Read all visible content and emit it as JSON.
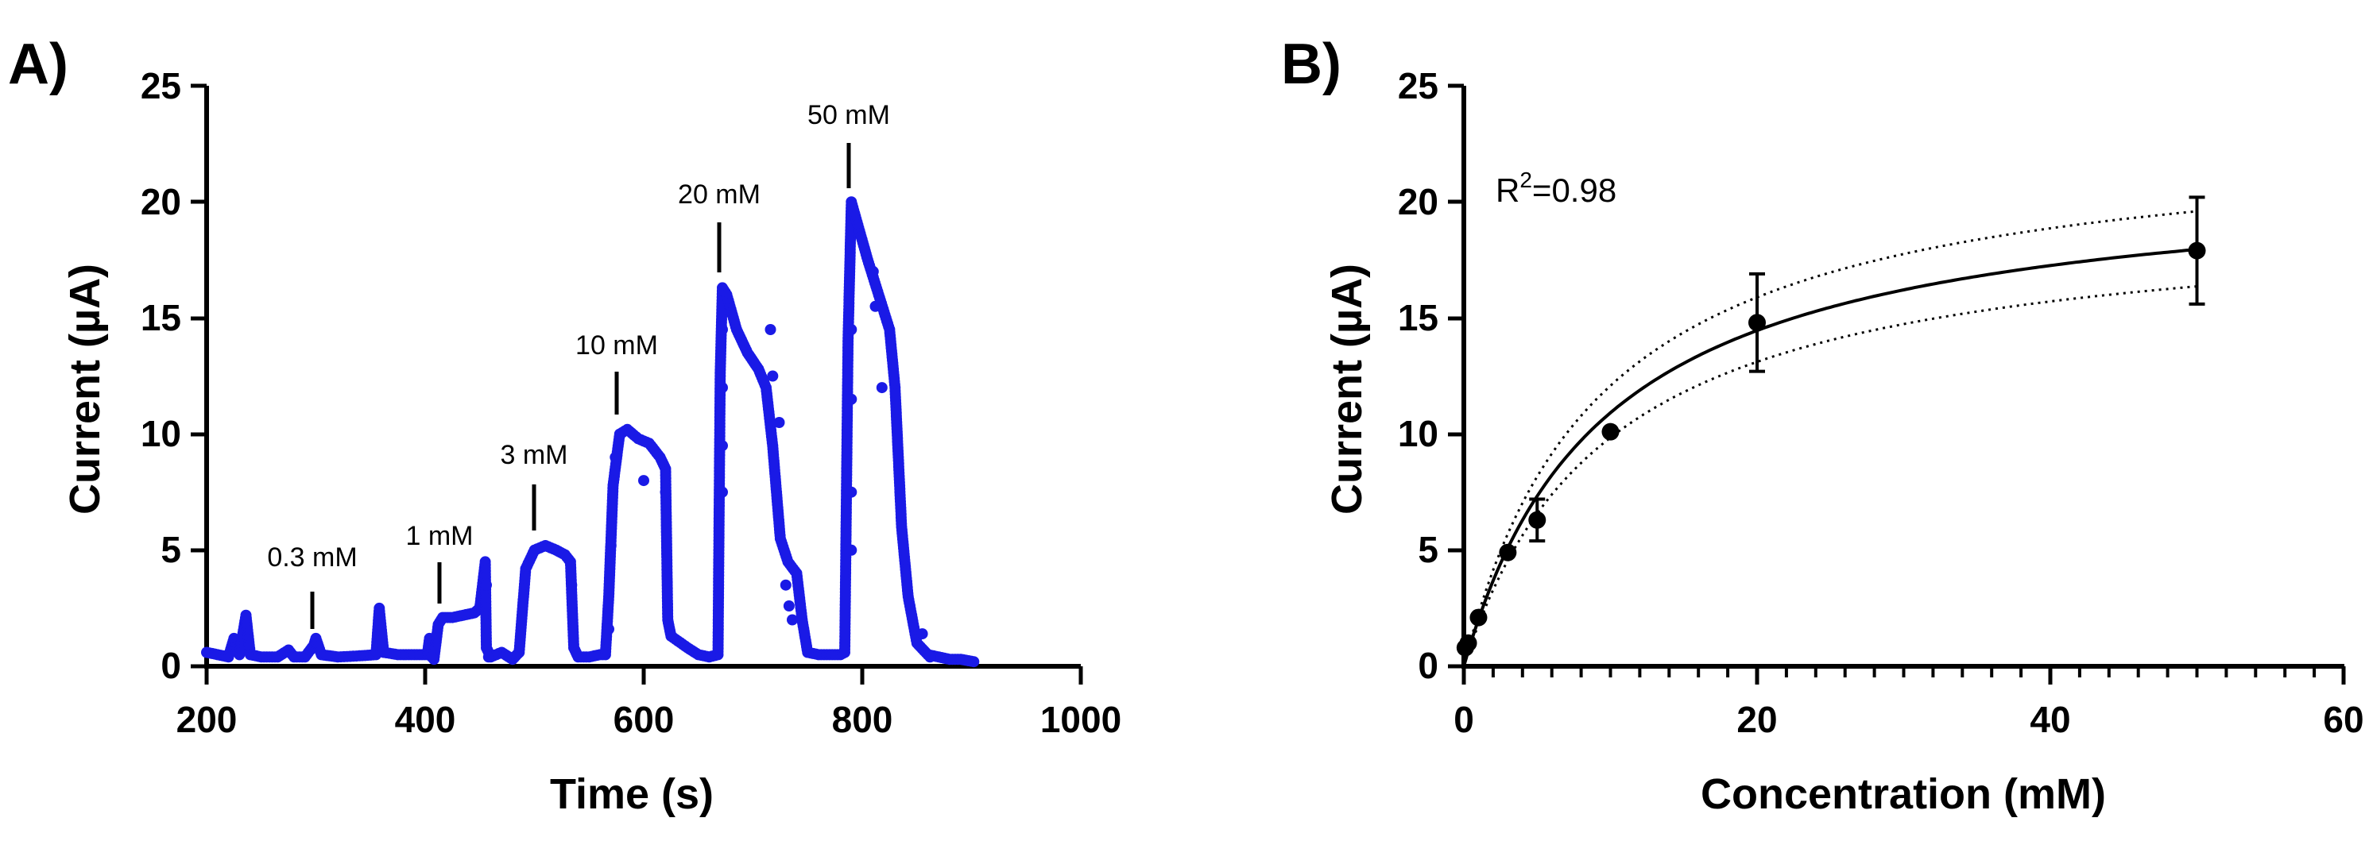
{
  "chart_data": [
    {
      "panel": "A)",
      "type": "scatter",
      "xlabel": "Time (s)",
      "ylabel": "Current (µA)",
      "xlim": [
        200,
        1000
      ],
      "ylim": [
        0,
        25
      ],
      "xticks": [
        "200",
        "400",
        "600",
        "800",
        "1000"
      ],
      "yticks": [
        "0",
        "5",
        "10",
        "15",
        "20",
        "25"
      ],
      "marker_color": "#1a1ae6",
      "annotations": [
        {
          "label": "0.3 mM",
          "x": 300,
          "y": 1.2
        },
        {
          "label": "1 mM",
          "x": 412,
          "y": 2.2
        },
        {
          "label": "3 mM",
          "x": 500,
          "y": 5.4
        },
        {
          "label": "10 mM",
          "x": 580,
          "y": 10.3
        },
        {
          "label": "20 mM",
          "x": 672,
          "y": 16.6
        },
        {
          "label": "50 mM",
          "x": 790,
          "y": 20.2
        }
      ],
      "trace": [
        [
          200,
          0.6
        ],
        [
          210,
          0.5
        ],
        [
          220,
          0.4
        ],
        [
          225,
          1.2
        ],
        [
          230,
          0.5
        ],
        [
          236,
          2.2
        ],
        [
          240,
          0.5
        ],
        [
          250,
          0.4
        ],
        [
          265,
          0.4
        ],
        [
          275,
          0.7
        ],
        [
          280,
          0.4
        ],
        [
          290,
          0.4
        ],
        [
          298,
          0.9
        ],
        [
          300,
          1.2
        ],
        [
          305,
          0.5
        ],
        [
          320,
          0.4
        ],
        [
          340,
          0.45
        ],
        [
          355,
          0.5
        ],
        [
          358,
          2.5
        ],
        [
          362,
          0.6
        ],
        [
          375,
          0.5
        ],
        [
          390,
          0.5
        ],
        [
          402,
          0.5
        ],
        [
          404,
          1.2
        ],
        [
          408,
          0.3
        ],
        [
          412,
          1.8
        ],
        [
          416,
          2.1
        ],
        [
          425,
          2.1
        ],
        [
          435,
          2.2
        ],
        [
          445,
          2.3
        ],
        [
          450,
          2.5
        ],
        [
          455,
          4.5
        ],
        [
          456,
          0.8
        ],
        [
          460,
          0.4
        ],
        [
          470,
          0.6
        ],
        [
          480,
          0.3
        ],
        [
          486,
          0.6
        ],
        [
          492,
          4.2
        ],
        [
          500,
          5.0
        ],
        [
          510,
          5.2
        ],
        [
          520,
          5.0
        ],
        [
          528,
          4.8
        ],
        [
          533,
          4.5
        ],
        [
          536,
          0.8
        ],
        [
          540,
          0.4
        ],
        [
          550,
          0.4
        ],
        [
          560,
          0.5
        ],
        [
          565,
          0.5
        ],
        [
          568,
          3.0
        ],
        [
          572,
          7.8
        ],
        [
          578,
          10.0
        ],
        [
          585,
          10.2
        ],
        [
          595,
          9.8
        ],
        [
          605,
          9.6
        ],
        [
          615,
          9.0
        ],
        [
          620,
          8.5
        ],
        [
          622,
          2.0
        ],
        [
          625,
          1.3
        ],
        [
          640,
          0.8
        ],
        [
          650,
          0.5
        ],
        [
          660,
          0.4
        ],
        [
          668,
          0.5
        ],
        [
          670,
          12.5
        ],
        [
          672,
          16.3
        ],
        [
          676,
          16.0
        ],
        [
          685,
          14.5
        ],
        [
          695,
          13.5
        ],
        [
          705,
          12.8
        ],
        [
          712,
          12.0
        ],
        [
          718,
          9.5
        ],
        [
          725,
          5.5
        ],
        [
          732,
          4.5
        ],
        [
          740,
          4.0
        ],
        [
          745,
          2.0
        ],
        [
          750,
          0.6
        ],
        [
          760,
          0.5
        ],
        [
          770,
          0.5
        ],
        [
          780,
          0.5
        ],
        [
          784,
          0.6
        ],
        [
          787,
          14.0
        ],
        [
          790,
          20.0
        ],
        [
          796,
          19.0
        ],
        [
          805,
          17.5
        ],
        [
          815,
          16.0
        ],
        [
          825,
          14.5
        ],
        [
          830,
          12.0
        ],
        [
          836,
          6.0
        ],
        [
          842,
          3.0
        ],
        [
          850,
          1.0
        ],
        [
          860,
          0.5
        ],
        [
          870,
          0.4
        ],
        [
          880,
          0.3
        ],
        [
          890,
          0.3
        ],
        [
          902,
          0.2
        ]
      ],
      "outliers": [
        [
          672,
          7.5
        ],
        [
          672,
          9.5
        ],
        [
          672,
          12.0
        ],
        [
          672,
          14.5
        ],
        [
          716,
          14.5
        ],
        [
          718,
          12.5
        ],
        [
          724,
          10.5
        ],
        [
          730,
          3.5
        ],
        [
          733,
          2.6
        ],
        [
          736,
          2.0
        ],
        [
          790,
          5.0
        ],
        [
          790,
          7.5
        ],
        [
          790,
          11.5
        ],
        [
          790,
          14.5
        ],
        [
          810,
          17.0
        ],
        [
          812,
          15.5
        ],
        [
          818,
          12.0
        ],
        [
          456,
          3.5
        ],
        [
          534,
          3.5
        ],
        [
          600,
          8.0
        ],
        [
          620,
          7.5
        ],
        [
          404,
          0.5
        ],
        [
          406,
          0.4
        ],
        [
          458,
          0.4
        ],
        [
          568,
          1.6
        ],
        [
          570,
          5.2
        ],
        [
          574,
          9.0
        ],
        [
          862,
          0.4
        ],
        [
          855,
          1.4
        ]
      ]
    },
    {
      "panel": "B)",
      "type": "scatter",
      "xlabel": "Concentration (mM)",
      "ylabel": "Current (µA)",
      "xlim": [
        0,
        60
      ],
      "ylim": [
        0,
        25
      ],
      "xticks": [
        "0",
        "20",
        "40",
        "60"
      ],
      "yticks": [
        "0",
        "5",
        "10",
        "15",
        "20",
        "25"
      ],
      "r2_prefix": "R",
      "r2_exp": "2",
      "r2_value": "=0.98",
      "points": [
        {
          "x": 0.1,
          "y": 0.8,
          "err": 0.2
        },
        {
          "x": 0.3,
          "y": 1.0,
          "err": 0.2
        },
        {
          "x": 1,
          "y": 2.1,
          "err": 0.3
        },
        {
          "x": 3,
          "y": 4.9,
          "err": 0.3
        },
        {
          "x": 5,
          "y": 6.3,
          "err": 0.9
        },
        {
          "x": 10,
          "y": 10.1,
          "err": 0.3
        },
        {
          "x": 20,
          "y": 14.8,
          "err": 2.1
        },
        {
          "x": 50,
          "y": 17.9,
          "err": 2.3
        }
      ],
      "fit": {
        "vmax": 21.4,
        "km": 9.6
      },
      "ci_upper": {
        "vmax": 23.2,
        "km": 9.2
      },
      "ci_lower": {
        "vmax": 19.6,
        "km": 9.9
      }
    }
  ]
}
